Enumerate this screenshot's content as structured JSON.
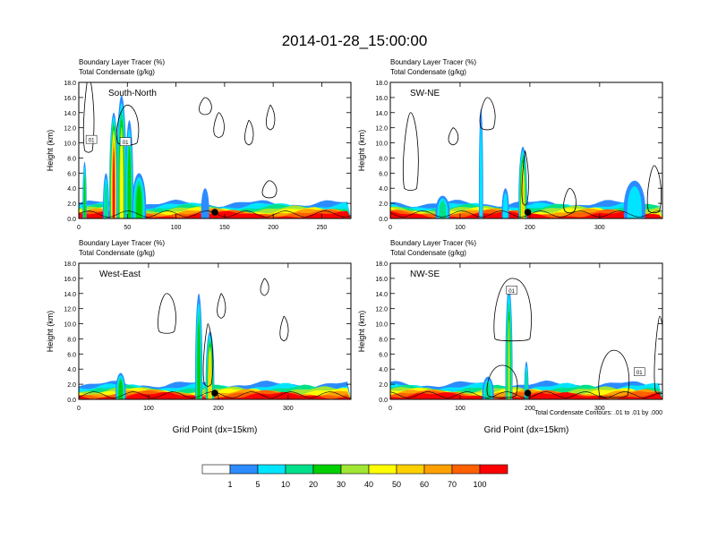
{
  "title": "2014-01-28_15:00:00",
  "colors": {
    "palette": [
      "#ffffff",
      "#2c8cff",
      "#00e5ff",
      "#00e08a",
      "#00d000",
      "#a0e632",
      "#ffff00",
      "#ffd000",
      "#ffa000",
      "#ff6000",
      "#ff0000"
    ],
    "contour": "#000000",
    "marker": "#000000"
  },
  "colorbar": {
    "tick_labels": [
      "1",
      "5",
      "10",
      "20",
      "30",
      "40",
      "50",
      "60",
      "70",
      "100"
    ]
  },
  "footnote": "Total Condensate Contours: .01 to .01 by .000",
  "chart_data": [
    {
      "type": "heatmap",
      "panel_label": "South-North",
      "header": [
        "Boundary Layer Tracer    (%)",
        "Total Condensate    (g/kg)"
      ],
      "ylabel": "Height (km)",
      "xlabel": "",
      "xlim": [
        0,
        280
      ],
      "ylim": [
        0,
        18
      ],
      "xticks": [
        0,
        50,
        100,
        150,
        200,
        250
      ],
      "yticks": [
        "0.0",
        "2.0",
        "4.0",
        "6.0",
        "8.0",
        "10.0",
        "12.0",
        "14.0",
        "16.0",
        "18.0"
      ],
      "grid": false,
      "marker_x": 140,
      "contour_labels": [
        {
          "x": 13,
          "y": 10.4,
          "text": "01"
        },
        {
          "x": 48,
          "y": 10.1,
          "text": "01"
        }
      ],
      "plumes": [
        {
          "x": 36,
          "w": 9,
          "h": 14,
          "v": 10
        },
        {
          "x": 44,
          "w": 10,
          "h": 16.3,
          "v": 6
        },
        {
          "x": 52,
          "w": 8,
          "h": 13,
          "v": 4
        },
        {
          "x": 6,
          "w": 4,
          "h": 7.5,
          "v": 4
        },
        {
          "x": 28,
          "w": 6,
          "h": 6,
          "v": 3
        },
        {
          "x": 62,
          "w": 14,
          "h": 6,
          "v": 4
        },
        {
          "x": 130,
          "w": 8,
          "h": 4,
          "v": 1
        }
      ],
      "contours": [
        {
          "x": 6,
          "w": 8,
          "h": 10,
          "y0": 9
        },
        {
          "x": 40,
          "w": 20,
          "h": 5,
          "y0": 10
        },
        {
          "x": 125,
          "w": 10,
          "h": 2,
          "y0": 14
        },
        {
          "x": 140,
          "w": 8,
          "h": 3,
          "y0": 11
        },
        {
          "x": 172,
          "w": 6,
          "h": 3,
          "y0": 10
        },
        {
          "x": 194,
          "w": 6,
          "h": 3,
          "y0": 12
        },
        {
          "x": 190,
          "w": 12,
          "h": 2,
          "y0": 3
        }
      ]
    },
    {
      "type": "heatmap",
      "panel_label": "SW-NE",
      "header": [
        "Boundary Layer Tracer    (%)",
        "Total Condensate    (g/kg)"
      ],
      "ylabel": "Height (km)",
      "xlabel": "",
      "xlim": [
        0,
        390
      ],
      "ylim": [
        0,
        18
      ],
      "xticks": [
        0,
        100,
        200,
        300
      ],
      "yticks": [
        "0.0",
        "2.0",
        "4.0",
        "6.0",
        "8.0",
        "10.0",
        "12.0",
        "14.0",
        "16.0",
        "18.0"
      ],
      "grid": false,
      "marker_x": 197,
      "contour_labels": [],
      "plumes": [
        {
          "x": 190,
          "w": 12,
          "h": 9.5,
          "v": 7
        },
        {
          "x": 130,
          "w": 6,
          "h": 14.5,
          "v": 2
        },
        {
          "x": 165,
          "w": 10,
          "h": 4,
          "v": 2
        },
        {
          "x": 350,
          "w": 30,
          "h": 5,
          "v": 2
        },
        {
          "x": 75,
          "w": 20,
          "h": 3,
          "v": 3
        }
      ],
      "contours": [
        {
          "x": 20,
          "w": 18,
          "h": 10,
          "y0": 4
        },
        {
          "x": 130,
          "w": 18,
          "h": 4,
          "y0": 12
        },
        {
          "x": 190,
          "w": 6,
          "h": 7,
          "y0": 2
        },
        {
          "x": 250,
          "w": 14,
          "h": 3,
          "y0": 1
        },
        {
          "x": 370,
          "w": 16,
          "h": 6,
          "y0": 1
        },
        {
          "x": 85,
          "w": 10,
          "h": 2,
          "y0": 10
        }
      ]
    },
    {
      "type": "heatmap",
      "panel_label": "West-East",
      "header": [
        "Boundary Layer Tracer    (%)",
        "Total Condensate    (g/kg)"
      ],
      "ylabel": "Height (km)",
      "xlabel": "Grid Point (dx=15km)",
      "xlim": [
        0,
        390
      ],
      "ylim": [
        0,
        18
      ],
      "xticks": [
        0,
        100,
        200,
        300
      ],
      "yticks": [
        "0.0",
        "2.0",
        "4.0",
        "6.0",
        "8.0",
        "10.0",
        "12.0",
        "14.0",
        "16.0",
        "18.0"
      ],
      "grid": false,
      "marker_x": 195,
      "contour_labels": [],
      "plumes": [
        {
          "x": 172,
          "w": 10,
          "h": 14,
          "v": 4
        },
        {
          "x": 188,
          "w": 12,
          "h": 9,
          "v": 7
        },
        {
          "x": 60,
          "w": 14,
          "h": 3.5,
          "v": 4
        }
      ],
      "contours": [
        {
          "x": 115,
          "w": 22,
          "h": 5,
          "y0": 9
        },
        {
          "x": 200,
          "w": 8,
          "h": 3,
          "y0": 11
        },
        {
          "x": 262,
          "w": 8,
          "h": 2,
          "y0": 14
        },
        {
          "x": 290,
          "w": 8,
          "h": 3,
          "y0": 8
        },
        {
          "x": 180,
          "w": 10,
          "h": 8,
          "y0": 2
        }
      ]
    },
    {
      "type": "heatmap",
      "panel_label": "NW-SE",
      "header": [
        "Boundary Layer Tracer    (%)",
        "Total Condensate    (g/kg)"
      ],
      "ylabel": "Height (km)",
      "xlabel": "Grid Point (dx=15km)",
      "xlim": [
        0,
        390
      ],
      "ylim": [
        0,
        18
      ],
      "xticks": [
        0,
        100,
        200,
        300
      ],
      "yticks": [
        "0.0",
        "2.0",
        "4.0",
        "6.0",
        "8.0",
        "10.0",
        "12.0",
        "14.0",
        "16.0",
        "18.0"
      ],
      "grid": false,
      "marker_x": 197,
      "contour_labels": [
        {
          "x": 174,
          "y": 14.4,
          "text": "01"
        },
        {
          "x": 357,
          "y": 3.6,
          "text": "01"
        }
      ],
      "plumes": [
        {
          "x": 170,
          "w": 10,
          "h": 15,
          "v": 5
        },
        {
          "x": 195,
          "w": 6,
          "h": 5,
          "v": 3
        },
        {
          "x": 140,
          "w": 16,
          "h": 3,
          "v": 3
        }
      ],
      "contours": [
        {
          "x": 150,
          "w": 50,
          "h": 8,
          "y0": 8
        },
        {
          "x": 300,
          "w": 40,
          "h": 6,
          "y0": 0.5
        },
        {
          "x": 380,
          "w": 12,
          "h": 10,
          "y0": 1
        },
        {
          "x": 140,
          "w": 40,
          "h": 4,
          "y0": 0.5
        }
      ]
    }
  ]
}
